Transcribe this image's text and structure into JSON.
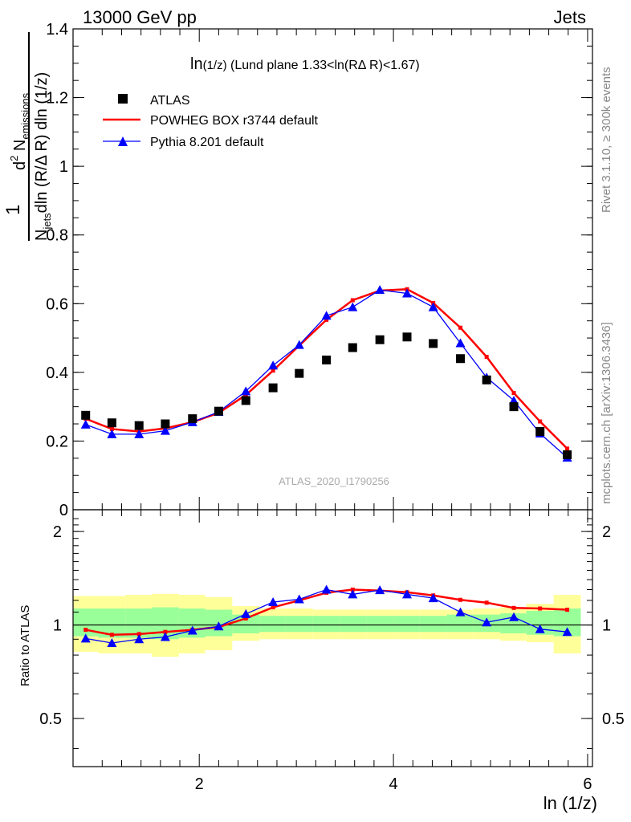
{
  "header": {
    "left": "13000 GeV pp",
    "right": "Jets"
  },
  "side_text": {
    "rivet": "Rivet 3.1.10, ≥ 300k events",
    "mcplots": "mcplots.cern.ch [arXiv:1306.3436]"
  },
  "watermark": "ATLAS_2020_I1790256",
  "plot_title": {
    "main": "ln",
    "sub": "(1/z)",
    "rest": " (Lund plane 1.33<ln(RΔ R)<1.67)"
  },
  "legend": [
    {
      "label": "ATLAS",
      "marker": "square",
      "color": "#000000"
    },
    {
      "label": "POWHEG BOX r3744 default",
      "marker": "line",
      "color": "#ff0000"
    },
    {
      "label": "Pythia 8.201 default",
      "marker": "triangle",
      "color": "#0000ff"
    }
  ],
  "ylabel": {
    "num_pre": "d",
    "num_exp": "2",
    "num_main": " N",
    "num_sub": "emissions",
    "one": "1",
    "den_n": "N",
    "den_sub": "jets",
    "den_rest": "dln (R/Δ R) dln (1/z)"
  },
  "xlabel": "ln (1/z)",
  "ratio_ylabel": "Ratio to ATLAS",
  "chart_data": [
    {
      "type": "line",
      "panel": "main",
      "xlim": [
        0.7,
        6.05
      ],
      "ylim": [
        0,
        1.4
      ],
      "yticks": [
        0,
        0.2,
        0.4,
        0.6,
        0.8,
        1.0,
        1.2,
        1.4
      ],
      "ytick_labels": [
        "0",
        "0.2",
        "0.4",
        "0.6",
        "0.8",
        "1",
        "1.2",
        "1.4"
      ],
      "x": [
        0.83,
        1.1,
        1.38,
        1.65,
        1.93,
        2.2,
        2.48,
        2.76,
        3.03,
        3.31,
        3.58,
        3.86,
        4.14,
        4.41,
        4.69,
        4.96,
        5.24,
        5.51,
        5.79
      ],
      "series": [
        {
          "name": "ATLAS",
          "values": [
            0.275,
            0.253,
            0.245,
            0.25,
            0.265,
            0.287,
            0.318,
            0.355,
            0.397,
            0.436,
            0.472,
            0.495,
            0.503,
            0.484,
            0.44,
            0.378,
            0.3,
            0.228,
            0.16
          ]
        },
        {
          "name": "POWHEG BOX r3744 default",
          "values": [
            0.265,
            0.235,
            0.228,
            0.237,
            0.255,
            0.282,
            0.334,
            0.405,
            0.478,
            0.553,
            0.61,
            0.638,
            0.642,
            0.602,
            0.53,
            0.445,
            0.34,
            0.257,
            0.178
          ]
        },
        {
          "name": "Pythia 8.201 default",
          "values": [
            0.248,
            0.22,
            0.22,
            0.23,
            0.255,
            0.285,
            0.345,
            0.42,
            0.48,
            0.565,
            0.59,
            0.64,
            0.63,
            0.59,
            0.485,
            0.385,
            0.318,
            0.222,
            0.152
          ]
        }
      ]
    },
    {
      "type": "line",
      "panel": "ratio",
      "xlim": [
        0.7,
        6.05
      ],
      "ylim": [
        0.35,
        2.35
      ],
      "yscale": "log",
      "yticks_major": [
        0.5,
        1,
        2
      ],
      "ytick_labels": [
        "0.5",
        "1",
        "2"
      ],
      "xticks": [
        2,
        4,
        6
      ],
      "xtick_labels": [
        "2",
        "4",
        "6"
      ],
      "x": [
        0.83,
        1.1,
        1.38,
        1.65,
        1.93,
        2.2,
        2.48,
        2.76,
        3.03,
        3.31,
        3.58,
        3.86,
        4.14,
        4.41,
        4.69,
        4.96,
        5.24,
        5.51,
        5.79
      ],
      "bin_edges": [
        0.7,
        0.96,
        1.24,
        1.51,
        1.79,
        2.06,
        2.34,
        2.62,
        2.89,
        3.17,
        3.44,
        3.72,
        4.0,
        4.27,
        4.55,
        4.82,
        5.1,
        5.37,
        5.65,
        5.93
      ],
      "band_inner": [
        [
          0.92,
          1.13
        ],
        [
          0.91,
          1.13
        ],
        [
          0.91,
          1.13
        ],
        [
          0.9,
          1.14
        ],
        [
          0.91,
          1.13
        ],
        [
          0.92,
          1.12
        ],
        [
          0.94,
          1.08
        ],
        [
          0.95,
          1.07
        ],
        [
          0.95,
          1.07
        ],
        [
          0.95,
          1.07
        ],
        [
          0.95,
          1.07
        ],
        [
          0.95,
          1.07
        ],
        [
          0.95,
          1.07
        ],
        [
          0.95,
          1.07
        ],
        [
          0.95,
          1.08
        ],
        [
          0.95,
          1.08
        ],
        [
          0.94,
          1.09
        ],
        [
          0.93,
          1.11
        ],
        [
          0.92,
          1.13
        ]
      ],
      "band_outer": [
        [
          0.82,
          1.24
        ],
        [
          0.81,
          1.24
        ],
        [
          0.81,
          1.25
        ],
        [
          0.79,
          1.26
        ],
        [
          0.81,
          1.25
        ],
        [
          0.83,
          1.23
        ],
        [
          0.89,
          1.15
        ],
        [
          0.9,
          1.13
        ],
        [
          0.9,
          1.13
        ],
        [
          0.9,
          1.12
        ],
        [
          0.9,
          1.12
        ],
        [
          0.9,
          1.12
        ],
        [
          0.9,
          1.12
        ],
        [
          0.9,
          1.12
        ],
        [
          0.9,
          1.12
        ],
        [
          0.9,
          1.13
        ],
        [
          0.89,
          1.14
        ],
        [
          0.88,
          1.17
        ],
        [
          0.81,
          1.25
        ]
      ],
      "series": [
        {
          "name": "POWHEG BOX r3744 default",
          "values": [
            0.965,
            0.93,
            0.935,
            0.95,
            0.965,
            0.985,
            1.05,
            1.14,
            1.2,
            1.27,
            1.3,
            1.29,
            1.275,
            1.245,
            1.205,
            1.18,
            1.135,
            1.13,
            1.12
          ]
        },
        {
          "name": "Pythia 8.201 default",
          "values": [
            0.905,
            0.875,
            0.9,
            0.915,
            0.96,
            0.99,
            1.085,
            1.185,
            1.21,
            1.3,
            1.255,
            1.295,
            1.255,
            1.22,
            1.1,
            1.02,
            1.06,
            0.97,
            0.95
          ]
        }
      ]
    }
  ],
  "colors": {
    "data": "#000000",
    "powheg": "#ff0000",
    "pythia": "#0000ff",
    "band_inner": "#99ff99",
    "band_outer": "#ffff99",
    "side_text": "#888888",
    "watermark": "#aaaaaa"
  }
}
